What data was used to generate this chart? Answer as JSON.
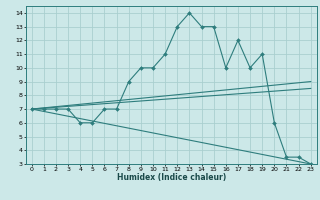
{
  "xlabel": "Humidex (Indice chaleur)",
  "bg_color": "#cce8e8",
  "line_color": "#2e7d7d",
  "grid_color": "#aacfcf",
  "xlim": [
    -0.5,
    23.5
  ],
  "ylim": [
    3,
    14.5
  ],
  "xticks": [
    0,
    1,
    2,
    3,
    4,
    5,
    6,
    7,
    8,
    9,
    10,
    11,
    12,
    13,
    14,
    15,
    16,
    17,
    18,
    19,
    20,
    21,
    22,
    23
  ],
  "yticks": [
    3,
    4,
    5,
    6,
    7,
    8,
    9,
    10,
    11,
    12,
    13,
    14
  ],
  "line1_x": [
    0,
    1,
    2,
    3,
    4,
    5,
    6,
    7,
    8,
    9,
    10,
    11,
    12,
    13,
    14,
    15,
    16,
    17,
    18,
    19,
    20,
    21,
    22,
    23
  ],
  "line1_y": [
    7,
    7,
    7,
    7,
    6,
    6,
    7,
    7,
    9,
    10,
    10,
    11,
    13,
    14,
    13,
    13,
    10,
    12,
    10,
    11,
    6,
    3.5,
    3.5,
    3
  ],
  "line2_x": [
    0,
    23
  ],
  "line2_y": [
    7,
    9.0
  ],
  "line3_x": [
    0,
    23
  ],
  "line3_y": [
    7,
    3.0
  ],
  "line4_x": [
    0,
    23
  ],
  "line4_y": [
    7,
    8.5
  ]
}
